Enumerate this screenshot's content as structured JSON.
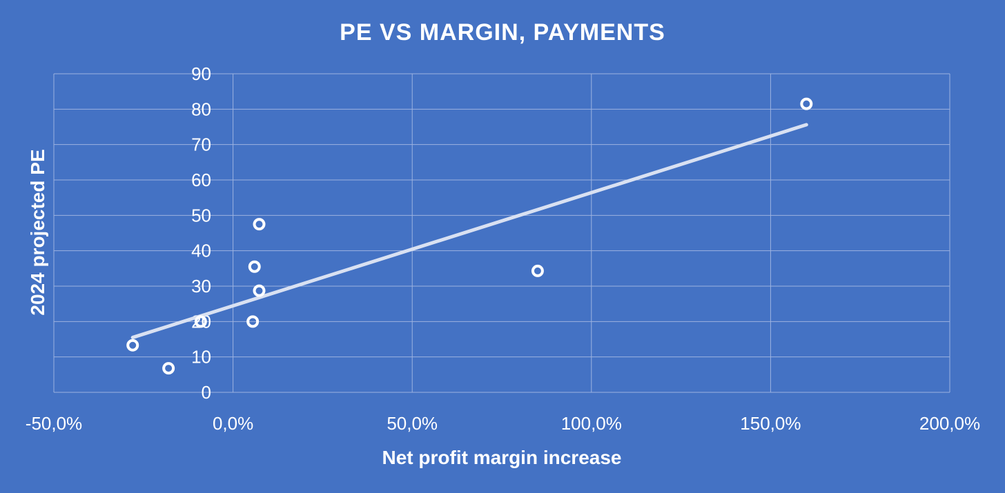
{
  "chart_data": {
    "type": "scatter",
    "title": "PE VS MARGIN, PAYMENTS",
    "xlabel": "Net profit margin increase",
    "ylabel": "2024 projected PE",
    "xlim": [
      -0.5,
      2.0
    ],
    "ylim": [
      0,
      90
    ],
    "x_ticks": [
      -0.5,
      0.0,
      0.5,
      1.0,
      1.5,
      2.0
    ],
    "x_tick_labels": [
      "-50,0%",
      "0,0%",
      "50,0%",
      "100,0%",
      "150,0%",
      "200,0%"
    ],
    "y_ticks": [
      0,
      10,
      20,
      30,
      40,
      50,
      60,
      70,
      80,
      90
    ],
    "y_tick_labels": [
      "0",
      "10",
      "20",
      "30",
      "40",
      "50",
      "60",
      "70",
      "80",
      "90"
    ],
    "grid": true,
    "legend": "none",
    "series": [
      {
        "points": [
          {
            "x": -0.28,
            "y": 13.3
          },
          {
            "x": -0.18,
            "y": 6.8
          },
          {
            "x": -0.09,
            "y": 20.0
          },
          {
            "x": 0.055,
            "y": 20.0
          },
          {
            "x": 0.06,
            "y": 35.5
          },
          {
            "x": 0.073,
            "y": 28.7
          },
          {
            "x": 0.073,
            "y": 47.5
          },
          {
            "x": 0.85,
            "y": 34.3
          },
          {
            "x": 1.6,
            "y": 81.5
          }
        ]
      }
    ],
    "trendline": {
      "type": "linear",
      "from": {
        "x": -0.28,
        "y": 15.5
      },
      "to": {
        "x": 1.6,
        "y": 75.6
      }
    }
  },
  "colors": {
    "background": "#4472C4",
    "text": "#ffffff",
    "grid": "#9db3e0",
    "trendline": "#d9e1f2",
    "marker": "#ffffff"
  }
}
